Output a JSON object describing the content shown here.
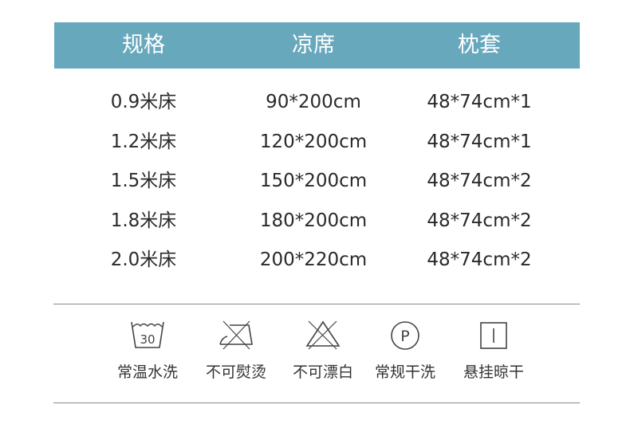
{
  "header": [
    "规格",
    "凉席",
    "枕套"
  ],
  "rows": [
    [
      "0.9米床",
      "90*200cm",
      "48*74cm*1"
    ],
    [
      "1.2米床",
      "120*200cm",
      "48*74cm*1"
    ],
    [
      "1.5米床",
      "150*200cm",
      "48*74cm*2"
    ],
    [
      "1.8米床",
      "180*200cm",
      "48*74cm*2"
    ],
    [
      "2.0米床",
      "200*220cm",
      "48*74cm*2"
    ]
  ],
  "care": [
    {
      "icon": "wash-30-icon",
      "label": "常温水洗",
      "temp": "30"
    },
    {
      "icon": "no-iron-icon",
      "label": "不可熨烫"
    },
    {
      "icon": "no-bleach-icon",
      "label": "不可漂白"
    },
    {
      "icon": "dry-clean-p-icon",
      "label": "常规干洗",
      "letter": "P"
    },
    {
      "icon": "hang-dry-icon",
      "label": "悬挂晾干"
    }
  ],
  "colors": {
    "header_bg": "#68a8bd"
  }
}
